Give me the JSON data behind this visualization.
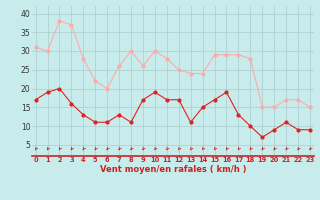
{
  "xlabel": "Vent moyen/en rafales ( km/h )",
  "hours": [
    0,
    1,
    2,
    3,
    4,
    5,
    6,
    7,
    8,
    9,
    10,
    11,
    12,
    13,
    14,
    15,
    16,
    17,
    18,
    19,
    20,
    21,
    22,
    23
  ],
  "vent_moyen": [
    17,
    19,
    20,
    16,
    13,
    11,
    11,
    13,
    11,
    17,
    19,
    17,
    17,
    11,
    15,
    17,
    19,
    13,
    10,
    7,
    9,
    11,
    9,
    9
  ],
  "en_rafales": [
    31,
    30,
    38,
    37,
    28,
    22,
    20,
    26,
    30,
    26,
    30,
    28,
    25,
    24,
    24,
    29,
    29,
    29,
    28,
    15,
    15,
    17,
    17,
    15
  ],
  "color_moyen": "#dd2222",
  "color_rafales": "#ffaaaa",
  "bg_color": "#c8ecec",
  "grid_color": "#aacccc",
  "ylim": [
    2,
    42
  ],
  "yticks": [
    5,
    10,
    15,
    20,
    25,
    30,
    35,
    40
  ],
  "xlim": [
    -0.3,
    23.3
  ],
  "arrow_color": "#cc2222",
  "tick_color": "#cc2222",
  "xlabel_color": "#cc2222",
  "yticklabel_color": "#333333"
}
